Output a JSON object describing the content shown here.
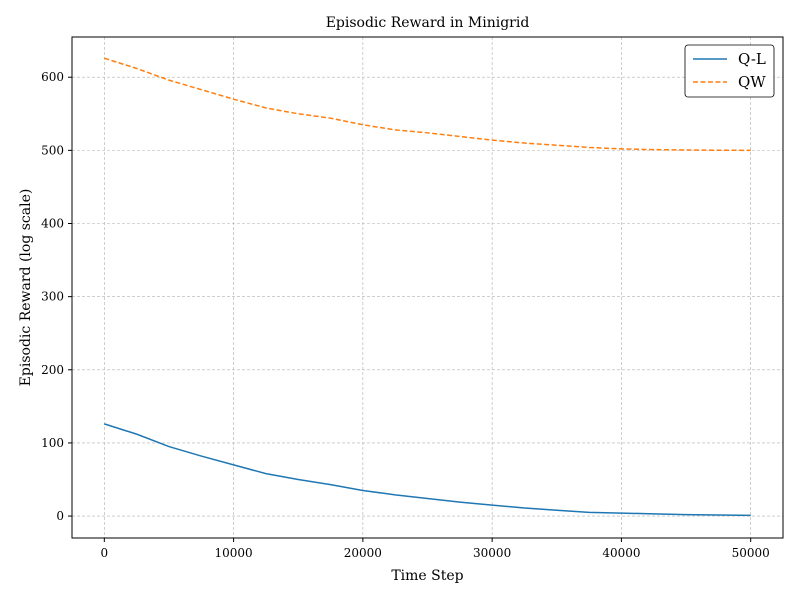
{
  "chart_data": {
    "type": "line",
    "title": "Episodic Reward in Minigrid",
    "xlabel": "Time Step",
    "ylabel": "Episodic Reward (log scale)",
    "xlim": [
      -2500,
      52500
    ],
    "ylim": [
      -30,
      655
    ],
    "xticks": [
      0,
      10000,
      20000,
      30000,
      40000,
      50000
    ],
    "xtick_labels": [
      "0",
      "10000",
      "20000",
      "30000",
      "40000",
      "50000"
    ],
    "yticks": [
      0,
      100,
      200,
      300,
      400,
      500,
      600
    ],
    "ytick_labels": [
      "0",
      "100",
      "200",
      "300",
      "400",
      "500",
      "600"
    ],
    "grid": true,
    "legend_position": "top-right",
    "series": [
      {
        "name": "Q-L",
        "color": "#1f77b4",
        "style": "solid",
        "x": [
          0,
          2500,
          5000,
          7500,
          10000,
          12500,
          15000,
          17500,
          20000,
          22500,
          25000,
          27500,
          30000,
          32500,
          35000,
          37500,
          40000,
          42500,
          45000,
          47500,
          50000
        ],
        "y": [
          126,
          112,
          95,
          82,
          70,
          58,
          50,
          43,
          35,
          29,
          24,
          19,
          15,
          11,
          8,
          5,
          4,
          3,
          2,
          1.5,
          1
        ]
      },
      {
        "name": "QW",
        "color": "#ff7f0e",
        "style": "dashed",
        "x": [
          0,
          2500,
          5000,
          7500,
          10000,
          12500,
          15000,
          17500,
          20000,
          22500,
          25000,
          27500,
          30000,
          32500,
          35000,
          37500,
          40000,
          42500,
          45000,
          47500,
          50000
        ],
        "y": [
          626,
          612,
          596,
          583,
          570,
          558,
          550,
          544,
          535,
          528,
          524,
          519,
          514,
          510,
          507,
          504,
          502,
          501,
          500.5,
          500.2,
          500
        ]
      }
    ]
  }
}
